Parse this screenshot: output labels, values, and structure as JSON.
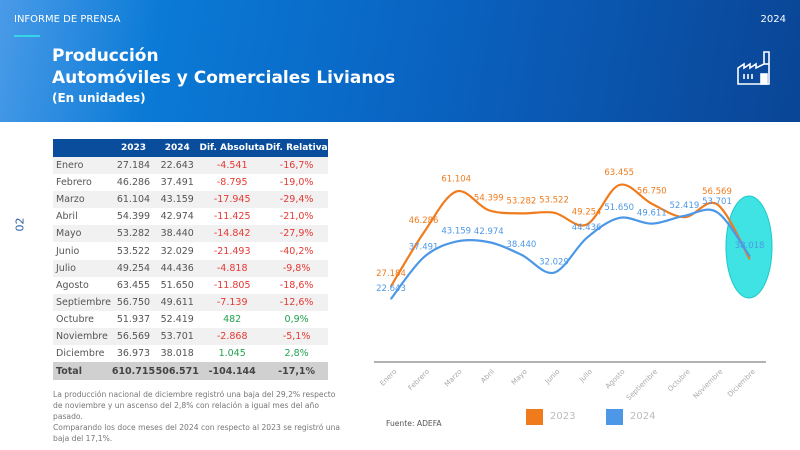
{
  "header": {
    "label": "INFORME DE PRENSA",
    "year": "2024",
    "title_line1": "Producción",
    "title_line2": "Automóviles y Comerciales Livianos",
    "title_line3": "(En unidades)",
    "icon": "factory-icon"
  },
  "page_number": "02",
  "table": {
    "headers": [
      "",
      "2023",
      "2024",
      "Dif. Absoluta",
      "Dif. Relativa"
    ],
    "rows": [
      [
        "Enero",
        "27.184",
        "22.643",
        "-4.541",
        "-16,7%"
      ],
      [
        "Febrero",
        "46.286",
        "37.491",
        "-8.795",
        "-19,0%"
      ],
      [
        "Marzo",
        "61.104",
        "43.159",
        "-17.945",
        "-29,4%"
      ],
      [
        "Abril",
        "54.399",
        "42.974",
        "-11.425",
        "-21,0%"
      ],
      [
        "Mayo",
        "53.282",
        "38.440",
        "-14.842",
        "-27,9%"
      ],
      [
        "Junio",
        "53.522",
        "32.029",
        "-21.493",
        "-40,2%"
      ],
      [
        "Julio",
        "49.254",
        "44.436",
        "-4.818",
        "-9,8%"
      ],
      [
        "Agosto",
        "63.455",
        "51.650",
        "-11.805",
        "-18,6%"
      ],
      [
        "Septiembre",
        "56.750",
        "49.611",
        "-7.139",
        "-12,6%"
      ],
      [
        "Octubre",
        "51.937",
        "52.419",
        "482",
        "0,9%"
      ],
      [
        "Noviembre",
        "56.569",
        "53.701",
        "-2.868",
        "-5,1%"
      ],
      [
        "Diciembre",
        "36.973",
        "38.018",
        "1.045",
        "2,8%"
      ]
    ],
    "total": [
      "Total",
      "610.715",
      "506.571",
      "-104.144",
      "-17,1%"
    ],
    "neg_color": "#e53935",
    "pos_color": "#22a150"
  },
  "note": "La producción nacional de diciembre registró una baja del 29,2% respecto de noviembre y un ascenso del 2,8% con relación a igual mes del año pasado.\nComparando los doce meses del 2024 con respecto al 2023 se registró una baja del 17,1%.",
  "source": "Fuente: ADEFA",
  "chart_data": {
    "type": "line",
    "categories": [
      "Enero",
      "Febrero",
      "Marzo",
      "Abril",
      "Mayo",
      "Junio",
      "Julio",
      "Agosto",
      "Septiembre",
      "Octubre",
      "Noviembre",
      "Diciembre"
    ],
    "series": [
      {
        "name": "2023",
        "color": "#f07b1d",
        "values": [
          27184,
          46286,
          61104,
          54399,
          53282,
          53522,
          49254,
          63455,
          56750,
          51937,
          56569,
          36973
        ],
        "labels": [
          "27.184",
          "46.286",
          "61.104",
          "54.399",
          "53.282",
          "53.522",
          "49.254",
          "63.455",
          "56.750",
          "",
          "56.569",
          ""
        ]
      },
      {
        "name": "2024",
        "color": "#4d98e6",
        "values": [
          22643,
          37491,
          43159,
          42974,
          38440,
          32029,
          44436,
          51650,
          49611,
          52419,
          53701,
          38018
        ],
        "labels": [
          "22.643",
          "37.491",
          "43.159",
          "42.974",
          "38.440",
          "32.029",
          "44.436",
          "51.650",
          "49.611",
          "52.419",
          "53.701",
          "38.018"
        ]
      }
    ],
    "ylim": [
      0,
      70000
    ],
    "grid": false,
    "legend": "bottom",
    "highlight": "Diciembre",
    "highlight_color": "#3fe3e3"
  }
}
